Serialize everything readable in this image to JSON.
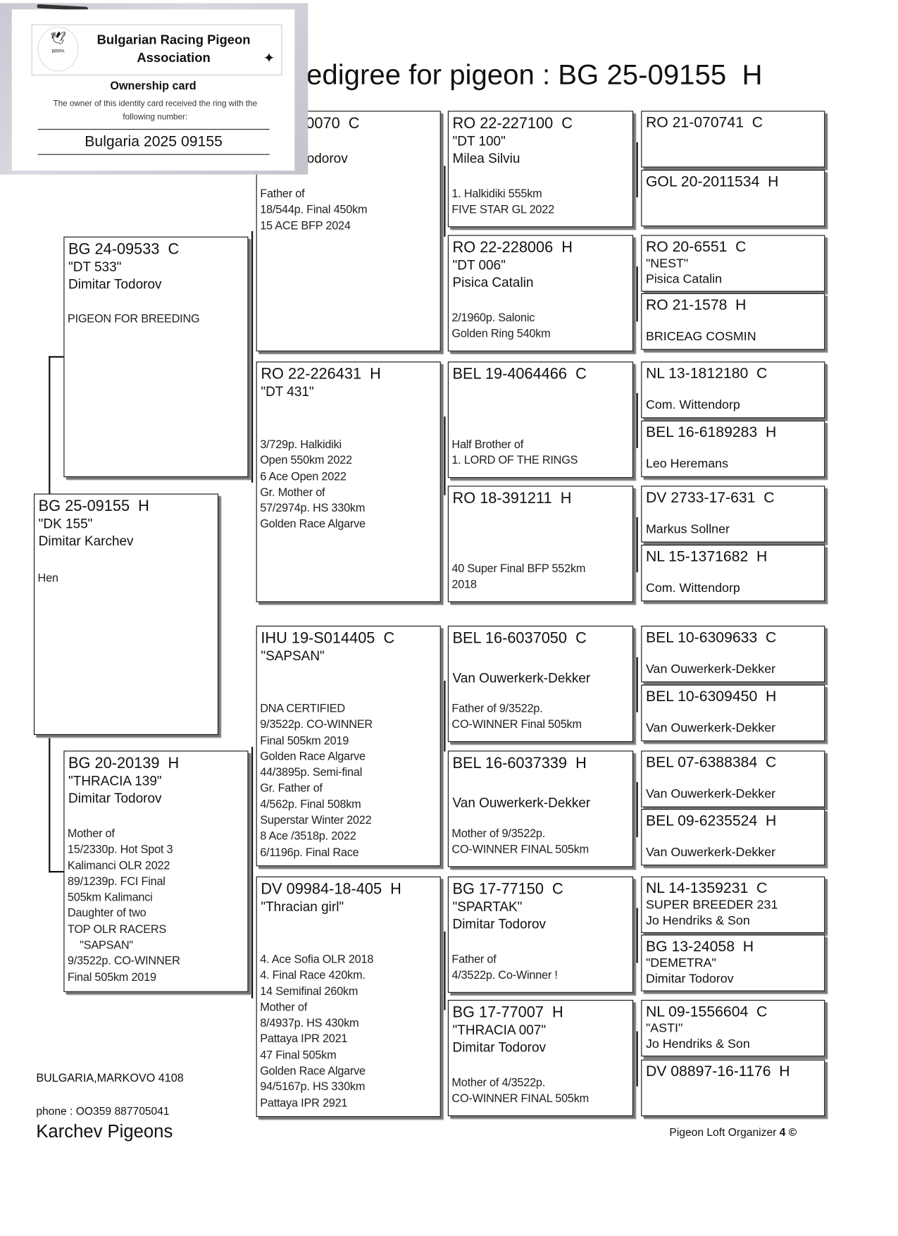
{
  "title": "Pedigree for pigeon : BG 25-09155  H",
  "ownership_card": {
    "logo_text": "BRPA",
    "organization": "Bulgarian Racing Pigeon Association",
    "card_title": "Ownership card",
    "description": "The owner of this identity card received the ring with the following number:",
    "ring_number": "Bulgaria 2025 09155"
  },
  "subject": {
    "ring": "BG 25-09155  H",
    "lines": [
      "\"DK 155\"",
      "Dimitar Karchev"
    ],
    "notes": [
      "Hen"
    ]
  },
  "gen2": [
    {
      "ring": "BG 24-09533  C",
      "lines": [
        "\"DT 533\"",
        "Dimitar Todorov"
      ],
      "notes": [
        "PIGEON FOR BREEDING"
      ]
    },
    {
      "ring": "BG 20-20139  H",
      "lines": [
        "\"THRACIA 139\"",
        "Dimitar Todorov"
      ],
      "notes": [
        "Mother of",
        "15/2330p. Hot Spot 3",
        "Kalimanci OLR 2022",
        "89/1239p. FCI Final",
        "505km Kalimanci",
        "Daughter of two",
        "TOP OLR RACERS",
        "    \"SAPSAN\"",
        "9/3522p. CO-WINNER",
        "Final 505km 2019"
      ]
    }
  ],
  "gen3": [
    {
      "ring": "-70070  C",
      "lines": [
        "'0\"",
        "r Todorov"
      ],
      "notes": [
        "Father of",
        "18/544p. Final 450km",
        "15 ACE BFP 2024"
      ]
    },
    {
      "ring": "RO 22-226431  H",
      "lines": [
        "\"DT 431\""
      ],
      "notes": [
        "3/729p. Halkidiki",
        "Open 550km 2022",
        "6 Ace Open 2022",
        "Gr. Mother of",
        "57/2974p. HS 330km",
        "Golden Race Algarve"
      ]
    },
    {
      "ring": "IHU 19-S014405  C",
      "lines": [
        "\"SAPSAN\""
      ],
      "notes": [
        "DNA CERTIFIED",
        "9/3522p. CO-WINNER",
        "Final 505km 2019",
        "Golden Race Algarve",
        "44/3895p. Semi-final",
        "Gr. Father of",
        "4/562p. Final 508km",
        "Superstar Winter 2022",
        "8 Ace /3518p. 2022",
        "6/1196p. Final Race"
      ]
    },
    {
      "ring": "DV 09984-18-405  H",
      "lines": [
        "\"Thracian girl\""
      ],
      "notes": [
        "4. Ace Sofia OLR 2018",
        "4. Final Race 420km.",
        "14 Semifinal 260km",
        "Mother of",
        "8/4937p. HS 430km",
        "Pattaya IPR 2021",
        "47 Final 505km",
        "Golden Race Algarve",
        "94/5167p. HS 330km",
        "Pattaya IPR 2921"
      ]
    }
  ],
  "gen4": [
    {
      "ring": "RO 22-227100  C",
      "lines": [
        "\"DT 100\"",
        "Milea Silviu"
      ],
      "notes": [
        "1. Halkidiki 555km",
        "FIVE STAR GL 2022"
      ]
    },
    {
      "ring": "RO 22-228006  H",
      "lines": [
        "\"DT 006\"",
        "Pisica Catalin"
      ],
      "notes": [
        "2/1960p. Salonic",
        "Golden Ring 540km"
      ]
    },
    {
      "ring": "BEL 19-4064466  C",
      "lines": [],
      "notes": [
        "Half Brother of",
        "1. LORD OF THE RINGS"
      ]
    },
    {
      "ring": "RO 18-391211  H",
      "lines": [],
      "notes": [
        "40 Super Final BFP 552km",
        "2018"
      ]
    },
    {
      "ring": "BEL 16-6037050  C",
      "lines": [
        "",
        "Van Ouwerkerk-Dekker"
      ],
      "notes": [
        "Father of 9/3522p.",
        "CO-WINNER Final 505km"
      ]
    },
    {
      "ring": "BEL 16-6037339  H",
      "lines": [
        "",
        "Van Ouwerkerk-Dekker"
      ],
      "notes": [
        "Mother of 9/3522p.",
        "CO-WINNER FINAL 505km"
      ]
    },
    {
      "ring": "BG 17-77150  C",
      "lines": [
        "\"SPARTAK\"",
        "Dimitar Todorov"
      ],
      "notes": [
        "Father of",
        "4/3522p. Co-Winner !"
      ]
    },
    {
      "ring": "BG 17-77007  H",
      "lines": [
        "\"THRACIA 007\"",
        "Dimitar Todorov"
      ],
      "notes": [
        "Mother of 4/3522p.",
        "CO-WINNER FINAL 505km"
      ]
    }
  ],
  "gen5": [
    {
      "ring": "RO 21-070741  C",
      "lines": [],
      "owner": ""
    },
    {
      "ring": "GOL 20-2011534  H",
      "lines": [],
      "owner": ""
    },
    {
      "ring": "RO 20-6551  C",
      "lines": [
        "\"NEST\"",
        "Pisica Catalin"
      ],
      "owner": ""
    },
    {
      "ring": "RO 21-1578  H",
      "lines": [],
      "owner": "BRICEAG COSMIN"
    },
    {
      "ring": "NL 13-1812180  C",
      "lines": [],
      "owner": "Com. Wittendorp"
    },
    {
      "ring": "BEL 16-6189283  H",
      "lines": [],
      "owner": "Leo Heremans"
    },
    {
      "ring": "DV 2733-17-631  C",
      "lines": [],
      "owner": "Markus Sollner"
    },
    {
      "ring": "NL 15-1371682  H",
      "lines": [],
      "owner": "Com. Wittendorp"
    },
    {
      "ring": "BEL 10-6309633  C",
      "lines": [],
      "owner": "Van Ouwerkerk-Dekker"
    },
    {
      "ring": "BEL 10-6309450  H",
      "lines": [],
      "owner": "Van Ouwerkerk-Dekker"
    },
    {
      "ring": "BEL 07-6388384  C",
      "lines": [],
      "owner": "Van Ouwerkerk-Dekker"
    },
    {
      "ring": "BEL 09-6235524  H",
      "lines": [],
      "owner": "Van Ouwerkerk-Dekker"
    },
    {
      "ring": "NL 14-1359231  C",
      "lines": [
        "SUPER BREEDER 231",
        "Jo Hendriks & Son"
      ],
      "owner": ""
    },
    {
      "ring": "BG 13-24058  H",
      "lines": [
        "\"DEMETRA\"",
        "Dimitar Todorov"
      ],
      "owner": ""
    },
    {
      "ring": "NL 09-1556604  C",
      "lines": [
        "\"ASTI\"",
        "Jo Hendriks & Son"
      ],
      "owner": ""
    },
    {
      "ring": "DV 08897-16-1176  H",
      "lines": [],
      "owner": ""
    }
  ],
  "footer": {
    "address": "BULGARIA,MARKOVO 4108",
    "phone": "phone : OO359 887705041",
    "loft_name": "Karchev Pigeons",
    "software": "Pigeon Loft Organizer",
    "software_version": "4 ©"
  }
}
